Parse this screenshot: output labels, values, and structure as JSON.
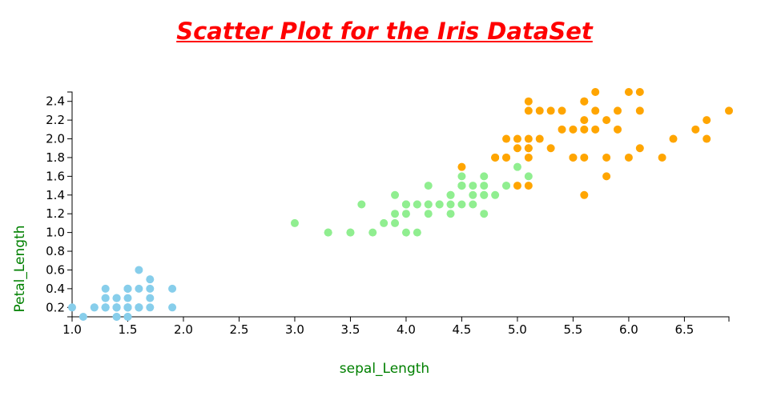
{
  "chart_data": {
    "type": "scatter",
    "title": "Scatter Plot for the Iris DataSet",
    "xlabel": "sepal_Length",
    "ylabel": "Petal_Length",
    "xlim": [
      1.0,
      6.9
    ],
    "ylim": [
      0.1,
      2.5
    ],
    "xticks": [
      "1.0",
      "1.5",
      "2.0",
      "2.5",
      "3.0",
      "3.5",
      "4.0",
      "4.5",
      "5.0",
      "5.5",
      "6.0",
      "6.5"
    ],
    "yticks": [
      "0.2",
      "0.4",
      "0.6",
      "0.8",
      "1.0",
      "1.2",
      "1.4",
      "1.6",
      "1.8",
      "2.0",
      "2.2",
      "2.4"
    ],
    "grid": false,
    "series": [
      {
        "color": "#87ceeb",
        "points": [
          [
            1.4,
            0.2
          ],
          [
            1.4,
            0.2
          ],
          [
            1.3,
            0.2
          ],
          [
            1.5,
            0.2
          ],
          [
            1.4,
            0.2
          ],
          [
            1.7,
            0.4
          ],
          [
            1.4,
            0.3
          ],
          [
            1.5,
            0.2
          ],
          [
            1.4,
            0.2
          ],
          [
            1.5,
            0.1
          ],
          [
            1.5,
            0.2
          ],
          [
            1.6,
            0.2
          ],
          [
            1.4,
            0.1
          ],
          [
            1.1,
            0.1
          ],
          [
            1.2,
            0.2
          ],
          [
            1.5,
            0.4
          ],
          [
            1.3,
            0.4
          ],
          [
            1.4,
            0.3
          ],
          [
            1.7,
            0.3
          ],
          [
            1.5,
            0.3
          ],
          [
            1.7,
            0.2
          ],
          [
            1.5,
            0.4
          ],
          [
            1.0,
            0.2
          ],
          [
            1.7,
            0.5
          ],
          [
            1.9,
            0.2
          ],
          [
            1.6,
            0.2
          ],
          [
            1.6,
            0.4
          ],
          [
            1.5,
            0.2
          ],
          [
            1.4,
            0.2
          ],
          [
            1.6,
            0.2
          ],
          [
            1.6,
            0.2
          ],
          [
            1.5,
            0.4
          ],
          [
            1.5,
            0.1
          ],
          [
            1.4,
            0.2
          ],
          [
            1.5,
            0.2
          ],
          [
            1.2,
            0.2
          ],
          [
            1.3,
            0.2
          ],
          [
            1.4,
            0.1
          ],
          [
            1.3,
            0.2
          ],
          [
            1.5,
            0.2
          ],
          [
            1.3,
            0.3
          ],
          [
            1.3,
            0.3
          ],
          [
            1.3,
            0.2
          ],
          [
            1.6,
            0.6
          ],
          [
            1.9,
            0.4
          ],
          [
            1.4,
            0.3
          ],
          [
            1.6,
            0.2
          ],
          [
            1.4,
            0.2
          ],
          [
            1.5,
            0.2
          ],
          [
            1.4,
            0.2
          ]
        ]
      },
      {
        "color": "#90ee90",
        "points": [
          [
            4.7,
            1.4
          ],
          [
            4.5,
            1.5
          ],
          [
            4.9,
            1.5
          ],
          [
            4.0,
            1.3
          ],
          [
            4.6,
            1.5
          ],
          [
            4.5,
            1.3
          ],
          [
            4.7,
            1.6
          ],
          [
            3.3,
            1.0
          ],
          [
            4.6,
            1.3
          ],
          [
            3.9,
            1.4
          ],
          [
            3.5,
            1.0
          ],
          [
            4.2,
            1.5
          ],
          [
            4.0,
            1.0
          ],
          [
            4.7,
            1.4
          ],
          [
            3.6,
            1.3
          ],
          [
            4.4,
            1.4
          ],
          [
            4.5,
            1.5
          ],
          [
            4.1,
            1.0
          ],
          [
            4.5,
            1.5
          ],
          [
            3.9,
            1.1
          ],
          [
            4.8,
            1.8
          ],
          [
            4.0,
            1.3
          ],
          [
            4.9,
            1.5
          ],
          [
            4.7,
            1.2
          ],
          [
            4.3,
            1.3
          ],
          [
            4.4,
            1.4
          ],
          [
            4.8,
            1.4
          ],
          [
            5.0,
            1.7
          ],
          [
            4.5,
            1.5
          ],
          [
            3.5,
            1.0
          ],
          [
            3.8,
            1.1
          ],
          [
            3.7,
            1.0
          ],
          [
            3.9,
            1.2
          ],
          [
            5.1,
            1.6
          ],
          [
            4.5,
            1.5
          ],
          [
            4.5,
            1.6
          ],
          [
            4.7,
            1.5
          ],
          [
            4.4,
            1.3
          ],
          [
            4.1,
            1.3
          ],
          [
            4.0,
            1.3
          ],
          [
            4.4,
            1.2
          ],
          [
            4.6,
            1.4
          ],
          [
            4.0,
            1.2
          ],
          [
            3.3,
            1.0
          ],
          [
            4.2,
            1.3
          ],
          [
            4.2,
            1.2
          ],
          [
            4.2,
            1.3
          ],
          [
            4.3,
            1.3
          ],
          [
            3.0,
            1.1
          ],
          [
            4.1,
            1.3
          ]
        ]
      },
      {
        "color": "#ffa500",
        "points": [
          [
            6.0,
            2.5
          ],
          [
            5.1,
            1.9
          ],
          [
            5.9,
            2.1
          ],
          [
            5.6,
            1.8
          ],
          [
            5.8,
            2.2
          ],
          [
            6.6,
            2.1
          ],
          [
            4.5,
            1.7
          ],
          [
            6.3,
            1.8
          ],
          [
            5.8,
            1.8
          ],
          [
            6.1,
            2.5
          ],
          [
            5.1,
            2.0
          ],
          [
            5.3,
            1.9
          ],
          [
            5.5,
            2.1
          ],
          [
            5.0,
            2.0
          ],
          [
            5.1,
            2.4
          ],
          [
            5.3,
            2.3
          ],
          [
            5.5,
            1.8
          ],
          [
            6.7,
            2.2
          ],
          [
            6.9,
            2.3
          ],
          [
            5.0,
            1.5
          ],
          [
            5.7,
            2.3
          ],
          [
            4.9,
            2.0
          ],
          [
            6.7,
            2.0
          ],
          [
            4.9,
            1.8
          ],
          [
            5.7,
            2.1
          ],
          [
            6.0,
            1.8
          ],
          [
            4.8,
            1.8
          ],
          [
            4.9,
            1.8
          ],
          [
            5.6,
            2.1
          ],
          [
            5.8,
            1.6
          ],
          [
            6.1,
            1.9
          ],
          [
            6.4,
            2.0
          ],
          [
            5.6,
            2.2
          ],
          [
            5.1,
            1.5
          ],
          [
            5.6,
            1.4
          ],
          [
            6.1,
            2.3
          ],
          [
            5.6,
            2.4
          ],
          [
            5.5,
            1.8
          ],
          [
            4.8,
            1.8
          ],
          [
            5.4,
            2.1
          ],
          [
            5.6,
            2.4
          ],
          [
            5.1,
            2.3
          ],
          [
            5.1,
            1.9
          ],
          [
            5.9,
            2.3
          ],
          [
            5.7,
            2.5
          ],
          [
            5.2,
            2.3
          ],
          [
            5.0,
            1.9
          ],
          [
            5.2,
            2.0
          ],
          [
            5.4,
            2.3
          ],
          [
            5.1,
            1.8
          ]
        ]
      }
    ]
  }
}
